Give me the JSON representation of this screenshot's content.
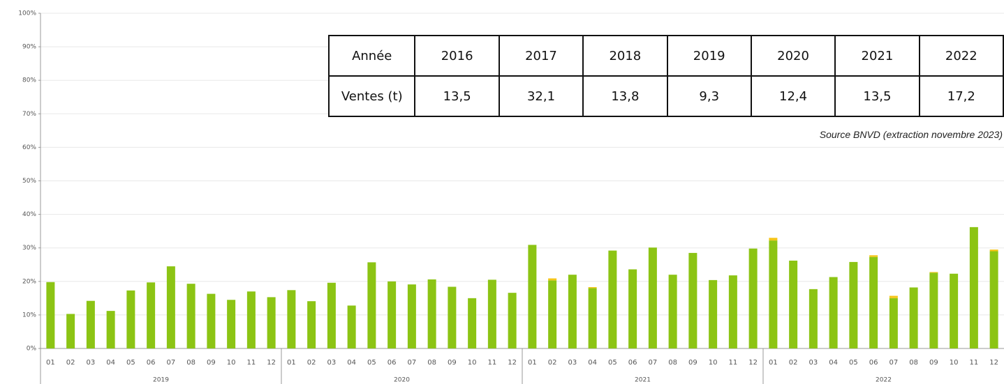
{
  "chart_data": {
    "type": "bar",
    "stacked": true,
    "categories": [
      "01",
      "02",
      "03",
      "04",
      "05",
      "06",
      "07",
      "08",
      "09",
      "10",
      "11",
      "12",
      "01",
      "02",
      "03",
      "04",
      "05",
      "06",
      "07",
      "08",
      "09",
      "10",
      "11",
      "12",
      "01",
      "02",
      "03",
      "04",
      "05",
      "06",
      "07",
      "08",
      "09",
      "10",
      "11",
      "12",
      "01",
      "02",
      "03",
      "04",
      "05",
      "06",
      "07",
      "08",
      "09",
      "10",
      "11",
      "12"
    ],
    "category_groups": [
      "2019",
      "2020",
      "2021",
      "2022"
    ],
    "series": [
      {
        "color": "#8cc414",
        "values": [
          19.8,
          10.3,
          14.2,
          11.2,
          17.3,
          19.7,
          24.5,
          19.3,
          16.3,
          14.5,
          17,
          15.3,
          17.4,
          14.1,
          19.6,
          12.8,
          25.7,
          20,
          19.1,
          20.6,
          18.4,
          15,
          20.5,
          16.6,
          30.9,
          20.3,
          22,
          18,
          29.2,
          23.6,
          30.1,
          22,
          28.5,
          20.4,
          21.8,
          29.8,
          32.2,
          26.2,
          17.7,
          21.3,
          25.8,
          27.3,
          15,
          18.2,
          22.6,
          22.3,
          36.2,
          29
        ]
      },
      {
        "color": "#f5c518",
        "values": [
          0,
          0,
          0,
          0,
          0,
          0,
          0,
          0,
          0,
          0,
          0,
          0,
          0,
          0,
          0,
          0,
          0,
          0,
          0,
          0,
          0,
          0,
          0,
          0,
          0,
          0.6,
          0,
          0.3,
          0,
          0,
          0,
          0,
          0,
          0,
          0,
          0,
          0.8,
          0,
          0,
          0,
          0,
          0.5,
          0.7,
          0,
          0.2,
          0,
          0,
          0.5
        ]
      }
    ],
    "ylim": [
      0,
      100
    ],
    "yticks": [
      {
        "value": 0,
        "label": "0%"
      },
      {
        "value": 10,
        "label": "10%"
      },
      {
        "value": 20,
        "label": "20%"
      },
      {
        "value": 30,
        "label": "30%"
      },
      {
        "value": 40,
        "label": "40%"
      },
      {
        "value": 50,
        "label": "50%"
      },
      {
        "value": 60,
        "label": "60%"
      },
      {
        "value": 70,
        "label": "70%"
      },
      {
        "value": 80,
        "label": "80%"
      },
      {
        "value": 90,
        "label": "90%"
      },
      {
        "value": 100,
        "label": "100%"
      }
    ],
    "grid": true
  },
  "table": {
    "header": [
      "Année",
      "2016",
      "2017",
      "2018",
      "2019",
      "2020",
      "2021",
      "2022"
    ],
    "row": [
      "Ventes (t)",
      "13,5",
      "32,1",
      "13,8",
      "9,3",
      "12,4",
      "13,5",
      "17,2"
    ]
  },
  "source": "Source BNVD (extraction novembre 2023)"
}
